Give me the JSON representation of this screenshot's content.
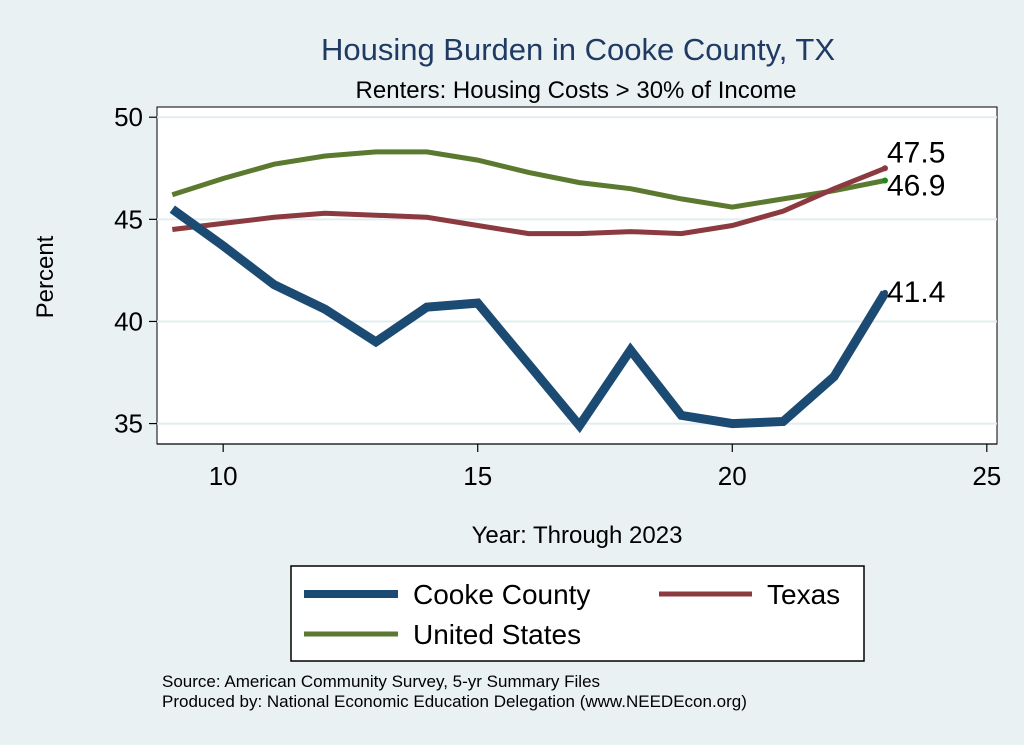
{
  "chart_data": {
    "type": "line",
    "title": "Housing Burden in Cooke County, TX",
    "subtitle": "Renters: Housing Costs > 30% of Income",
    "xlabel": "Year: Through 2023",
    "ylabel": "Percent",
    "xlim": [
      8.7,
      25.2
    ],
    "ylim": [
      34.0,
      50.5
    ],
    "xticks": [
      10,
      15,
      20,
      25
    ],
    "yticks": [
      35,
      40,
      45,
      50
    ],
    "x": [
      9,
      10,
      11,
      12,
      13,
      14,
      15,
      16,
      17,
      18,
      19,
      20,
      21,
      22,
      23
    ],
    "series": [
      {
        "name": "Cooke County",
        "color": "#1b4a72",
        "values": [
          45.5,
          43.7,
          41.8,
          40.6,
          39.0,
          40.7,
          40.9,
          37.9,
          34.9,
          38.6,
          35.4,
          35.0,
          35.1,
          37.3,
          41.4
        ],
        "end_label": "41.4"
      },
      {
        "name": "Texas",
        "color": "#8b3a3f",
        "values": [
          44.5,
          44.8,
          45.1,
          45.3,
          45.2,
          45.1,
          44.7,
          44.3,
          44.3,
          44.4,
          44.3,
          44.7,
          45.4,
          46.5,
          47.5
        ],
        "end_label": "47.5"
      },
      {
        "name": "United States",
        "color": "#5b7a2f",
        "values": [
          46.2,
          47.0,
          47.7,
          48.1,
          48.3,
          48.3,
          47.9,
          47.3,
          46.8,
          46.5,
          46.0,
          45.6,
          46.0,
          46.4,
          46.9
        ],
        "end_label": "46.9"
      }
    ],
    "legend_position": "bottom",
    "source_lines": [
      "Source: American Community Survey, 5-yr Summary Files",
      "Produced by: National Economic Education Delegation (www.NEEDEcon.org)"
    ]
  },
  "colors": {
    "background": "#eaf1f3",
    "plot_background": "#ffffff",
    "grid": "#e3ecef",
    "title": "#1f3b63"
  }
}
